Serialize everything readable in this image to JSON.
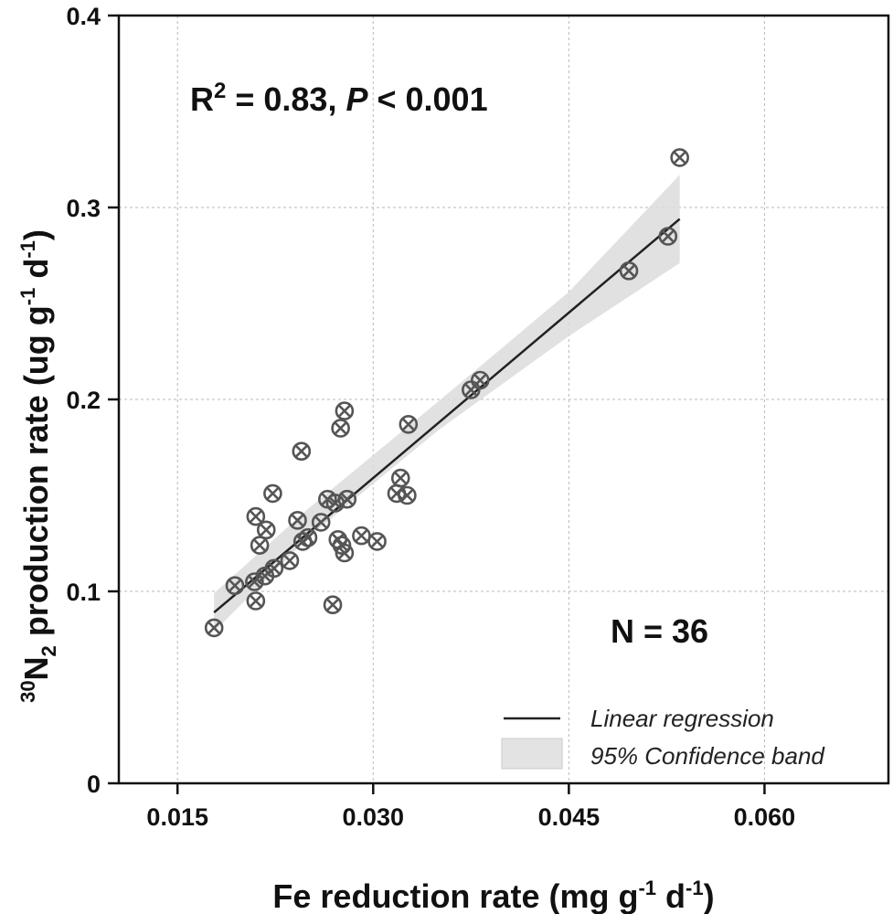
{
  "chart_data": {
    "type": "scatter",
    "xlabel": "Fe reduction rate (mg g",
    "xlabel_sup1": "-1",
    "xlabel_mid": " d",
    "xlabel_sup2": "-1",
    "xlabel_end": ")",
    "ylabel_sup_prefix": "30",
    "ylabel_N": "N",
    "ylabel_sub": "2",
    "ylabel_rest": " production rate (ug g",
    "ylabel_sup1": "-1",
    "ylabel_mid": " d",
    "ylabel_sup2": "-1",
    "ylabel_end": ")",
    "xlim": [
      0.0105,
      0.0695
    ],
    "ylim": [
      0,
      0.4
    ],
    "x_ticks": [
      0.015,
      0.03,
      0.045,
      0.06
    ],
    "x_tick_labels": [
      "0.015",
      "0.030",
      "0.045",
      "0.060"
    ],
    "y_ticks": [
      0,
      0.1,
      0.2,
      0.3,
      0.4
    ],
    "y_tick_labels": [
      "0",
      "0.1",
      "0.2",
      "0.3",
      "0.4"
    ],
    "grid": true,
    "annotation_r2": {
      "r_text": "R",
      "r_sup": "2",
      "mid_text": " = 0.83, ",
      "p_text": "P",
      "end_text": " < 0.001"
    },
    "annotation_n": "N = 36",
    "legend": {
      "position": "bottom-right",
      "line_label": "Linear regression",
      "band_label": "95% Confidence band"
    },
    "regression": {
      "x": [
        0.0178,
        0.0535
      ],
      "y": [
        0.089,
        0.294
      ]
    },
    "confidence_band": {
      "x": [
        0.0178,
        0.025,
        0.035,
        0.045,
        0.0535
      ],
      "lower": [
        0.079,
        0.128,
        0.184,
        0.233,
        0.271
      ],
      "upper": [
        0.099,
        0.143,
        0.199,
        0.256,
        0.317
      ]
    },
    "points": [
      {
        "x": 0.0178,
        "y": 0.081
      },
      {
        "x": 0.0194,
        "y": 0.103
      },
      {
        "x": 0.0209,
        "y": 0.105
      },
      {
        "x": 0.021,
        "y": 0.095
      },
      {
        "x": 0.021,
        "y": 0.139
      },
      {
        "x": 0.0213,
        "y": 0.124
      },
      {
        "x": 0.0217,
        "y": 0.108
      },
      {
        "x": 0.0218,
        "y": 0.132
      },
      {
        "x": 0.0223,
        "y": 0.151
      },
      {
        "x": 0.0224,
        "y": 0.112
      },
      {
        "x": 0.0236,
        "y": 0.116
      },
      {
        "x": 0.0242,
        "y": 0.137
      },
      {
        "x": 0.0245,
        "y": 0.173
      },
      {
        "x": 0.0246,
        "y": 0.126
      },
      {
        "x": 0.025,
        "y": 0.128
      },
      {
        "x": 0.026,
        "y": 0.136
      },
      {
        "x": 0.0265,
        "y": 0.148
      },
      {
        "x": 0.0269,
        "y": 0.093
      },
      {
        "x": 0.0271,
        "y": 0.146
      },
      {
        "x": 0.0273,
        "y": 0.127
      },
      {
        "x": 0.0275,
        "y": 0.185
      },
      {
        "x": 0.0276,
        "y": 0.124
      },
      {
        "x": 0.0278,
        "y": 0.194
      },
      {
        "x": 0.0278,
        "y": 0.12
      },
      {
        "x": 0.028,
        "y": 0.148
      },
      {
        "x": 0.0291,
        "y": 0.129
      },
      {
        "x": 0.0303,
        "y": 0.126
      },
      {
        "x": 0.0318,
        "y": 0.151
      },
      {
        "x": 0.0321,
        "y": 0.159
      },
      {
        "x": 0.0326,
        "y": 0.15
      },
      {
        "x": 0.0327,
        "y": 0.187
      },
      {
        "x": 0.0375,
        "y": 0.205
      },
      {
        "x": 0.0382,
        "y": 0.21
      },
      {
        "x": 0.0496,
        "y": 0.267
      },
      {
        "x": 0.0526,
        "y": 0.285
      },
      {
        "x": 0.0535,
        "y": 0.326
      }
    ]
  }
}
